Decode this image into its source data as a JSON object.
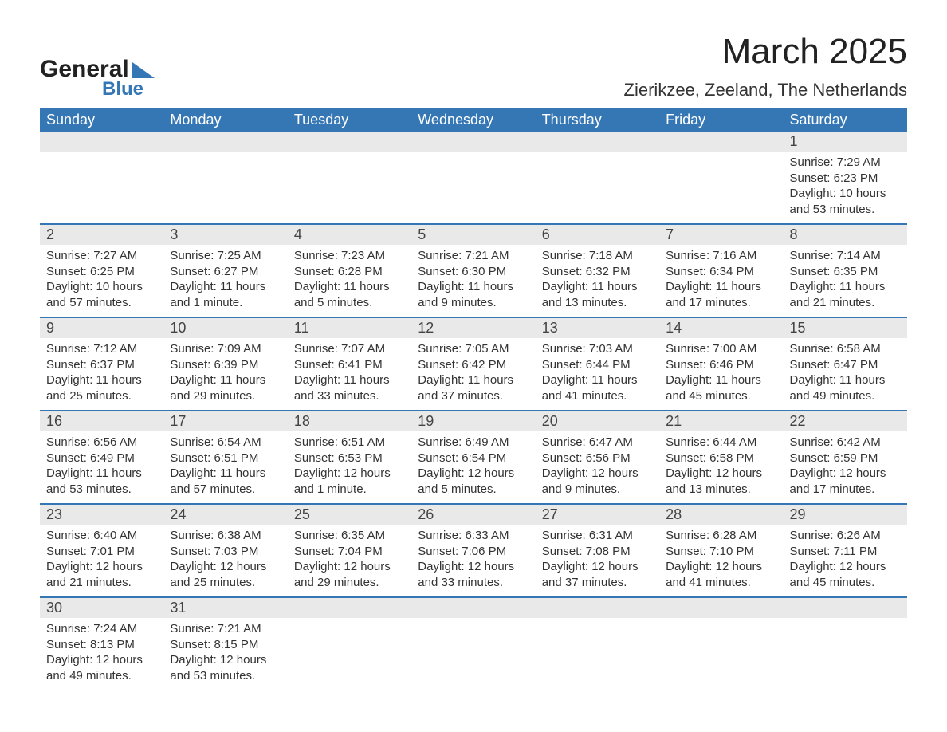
{
  "logo": {
    "text1": "General",
    "text2": "Blue",
    "triangle_color": "#3576b5"
  },
  "title": "March 2025",
  "location": "Zierikzee, Zeeland, The Netherlands",
  "colors": {
    "header_bg": "#3576b5",
    "header_text": "#ffffff",
    "daynum_bg": "#e9e9e9",
    "row_divider": "#3576b5",
    "text": "#333333",
    "background": "#ffffff"
  },
  "typography": {
    "title_fontsize": 44,
    "location_fontsize": 22,
    "header_fontsize": 18,
    "daynum_fontsize": 18,
    "cell_fontsize": 15
  },
  "calendar": {
    "type": "table",
    "days_of_week": [
      "Sunday",
      "Monday",
      "Tuesday",
      "Wednesday",
      "Thursday",
      "Friday",
      "Saturday"
    ],
    "weeks": [
      [
        null,
        null,
        null,
        null,
        null,
        null,
        {
          "d": "1",
          "sr": "Sunrise: 7:29 AM",
          "ss": "Sunset: 6:23 PM",
          "dl": "Daylight: 10 hours and 53 minutes."
        }
      ],
      [
        {
          "d": "2",
          "sr": "Sunrise: 7:27 AM",
          "ss": "Sunset: 6:25 PM",
          "dl": "Daylight: 10 hours and 57 minutes."
        },
        {
          "d": "3",
          "sr": "Sunrise: 7:25 AM",
          "ss": "Sunset: 6:27 PM",
          "dl": "Daylight: 11 hours and 1 minute."
        },
        {
          "d": "4",
          "sr": "Sunrise: 7:23 AM",
          "ss": "Sunset: 6:28 PM",
          "dl": "Daylight: 11 hours and 5 minutes."
        },
        {
          "d": "5",
          "sr": "Sunrise: 7:21 AM",
          "ss": "Sunset: 6:30 PM",
          "dl": "Daylight: 11 hours and 9 minutes."
        },
        {
          "d": "6",
          "sr": "Sunrise: 7:18 AM",
          "ss": "Sunset: 6:32 PM",
          "dl": "Daylight: 11 hours and 13 minutes."
        },
        {
          "d": "7",
          "sr": "Sunrise: 7:16 AM",
          "ss": "Sunset: 6:34 PM",
          "dl": "Daylight: 11 hours and 17 minutes."
        },
        {
          "d": "8",
          "sr": "Sunrise: 7:14 AM",
          "ss": "Sunset: 6:35 PM",
          "dl": "Daylight: 11 hours and 21 minutes."
        }
      ],
      [
        {
          "d": "9",
          "sr": "Sunrise: 7:12 AM",
          "ss": "Sunset: 6:37 PM",
          "dl": "Daylight: 11 hours and 25 minutes."
        },
        {
          "d": "10",
          "sr": "Sunrise: 7:09 AM",
          "ss": "Sunset: 6:39 PM",
          "dl": "Daylight: 11 hours and 29 minutes."
        },
        {
          "d": "11",
          "sr": "Sunrise: 7:07 AM",
          "ss": "Sunset: 6:41 PM",
          "dl": "Daylight: 11 hours and 33 minutes."
        },
        {
          "d": "12",
          "sr": "Sunrise: 7:05 AM",
          "ss": "Sunset: 6:42 PM",
          "dl": "Daylight: 11 hours and 37 minutes."
        },
        {
          "d": "13",
          "sr": "Sunrise: 7:03 AM",
          "ss": "Sunset: 6:44 PM",
          "dl": "Daylight: 11 hours and 41 minutes."
        },
        {
          "d": "14",
          "sr": "Sunrise: 7:00 AM",
          "ss": "Sunset: 6:46 PM",
          "dl": "Daylight: 11 hours and 45 minutes."
        },
        {
          "d": "15",
          "sr": "Sunrise: 6:58 AM",
          "ss": "Sunset: 6:47 PM",
          "dl": "Daylight: 11 hours and 49 minutes."
        }
      ],
      [
        {
          "d": "16",
          "sr": "Sunrise: 6:56 AM",
          "ss": "Sunset: 6:49 PM",
          "dl": "Daylight: 11 hours and 53 minutes."
        },
        {
          "d": "17",
          "sr": "Sunrise: 6:54 AM",
          "ss": "Sunset: 6:51 PM",
          "dl": "Daylight: 11 hours and 57 minutes."
        },
        {
          "d": "18",
          "sr": "Sunrise: 6:51 AM",
          "ss": "Sunset: 6:53 PM",
          "dl": "Daylight: 12 hours and 1 minute."
        },
        {
          "d": "19",
          "sr": "Sunrise: 6:49 AM",
          "ss": "Sunset: 6:54 PM",
          "dl": "Daylight: 12 hours and 5 minutes."
        },
        {
          "d": "20",
          "sr": "Sunrise: 6:47 AM",
          "ss": "Sunset: 6:56 PM",
          "dl": "Daylight: 12 hours and 9 minutes."
        },
        {
          "d": "21",
          "sr": "Sunrise: 6:44 AM",
          "ss": "Sunset: 6:58 PM",
          "dl": "Daylight: 12 hours and 13 minutes."
        },
        {
          "d": "22",
          "sr": "Sunrise: 6:42 AM",
          "ss": "Sunset: 6:59 PM",
          "dl": "Daylight: 12 hours and 17 minutes."
        }
      ],
      [
        {
          "d": "23",
          "sr": "Sunrise: 6:40 AM",
          "ss": "Sunset: 7:01 PM",
          "dl": "Daylight: 12 hours and 21 minutes."
        },
        {
          "d": "24",
          "sr": "Sunrise: 6:38 AM",
          "ss": "Sunset: 7:03 PM",
          "dl": "Daylight: 12 hours and 25 minutes."
        },
        {
          "d": "25",
          "sr": "Sunrise: 6:35 AM",
          "ss": "Sunset: 7:04 PM",
          "dl": "Daylight: 12 hours and 29 minutes."
        },
        {
          "d": "26",
          "sr": "Sunrise: 6:33 AM",
          "ss": "Sunset: 7:06 PM",
          "dl": "Daylight: 12 hours and 33 minutes."
        },
        {
          "d": "27",
          "sr": "Sunrise: 6:31 AM",
          "ss": "Sunset: 7:08 PM",
          "dl": "Daylight: 12 hours and 37 minutes."
        },
        {
          "d": "28",
          "sr": "Sunrise: 6:28 AM",
          "ss": "Sunset: 7:10 PM",
          "dl": "Daylight: 12 hours and 41 minutes."
        },
        {
          "d": "29",
          "sr": "Sunrise: 6:26 AM",
          "ss": "Sunset: 7:11 PM",
          "dl": "Daylight: 12 hours and 45 minutes."
        }
      ],
      [
        {
          "d": "30",
          "sr": "Sunrise: 7:24 AM",
          "ss": "Sunset: 8:13 PM",
          "dl": "Daylight: 12 hours and 49 minutes."
        },
        {
          "d": "31",
          "sr": "Sunrise: 7:21 AM",
          "ss": "Sunset: 8:15 PM",
          "dl": "Daylight: 12 hours and 53 minutes."
        },
        null,
        null,
        null,
        null,
        null
      ]
    ]
  }
}
